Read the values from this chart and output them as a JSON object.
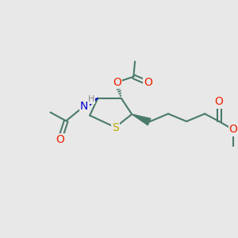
{
  "bg_color": "#e8e8e8",
  "bond_color": "#4a7a6a",
  "bond_width": 1.5,
  "heteroatom_colors": {
    "O": "#ee2200",
    "N": "#0000cc",
    "S": "#bbaa00",
    "H": "#888888",
    "C": "#4a7a6a"
  },
  "figsize": [
    3.0,
    3.0
  ],
  "dpi": 100,
  "xlim": [
    0,
    10
  ],
  "ylim": [
    0,
    10
  ]
}
